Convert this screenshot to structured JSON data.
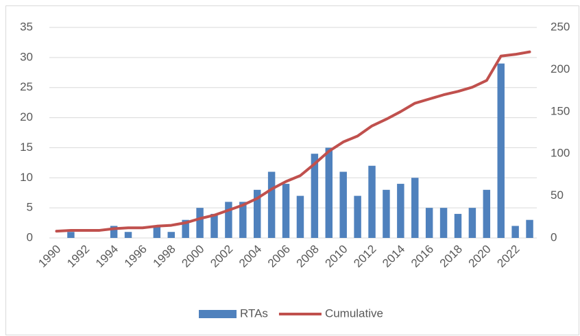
{
  "chart_data": {
    "type": "bar-line",
    "categories": [
      "1990",
      null,
      "1992",
      null,
      "1994",
      null,
      "1996",
      null,
      "1998",
      null,
      "2000",
      null,
      "2002",
      null,
      "2004",
      null,
      "2006",
      null,
      "2008",
      null,
      "2010",
      null,
      "2012",
      null,
      "2014",
      null,
      "2016",
      null,
      "2018",
      null,
      "2020",
      null,
      "2022",
      null
    ],
    "series": [
      {
        "name": "RTAs",
        "type": "bar",
        "color": "#4f81bd",
        "values": [
          0,
          1,
          0,
          0,
          2,
          1,
          0,
          2,
          1,
          3,
          5,
          4,
          6,
          6,
          8,
          11,
          9,
          7,
          14,
          15,
          11,
          7,
          12,
          8,
          9,
          10,
          5,
          5,
          4,
          5,
          8,
          29,
          2,
          3
        ]
      },
      {
        "name": "Cumulative",
        "type": "line",
        "axis": "y2",
        "color": "#c0504d",
        "values": [
          8,
          9,
          9,
          9,
          11,
          12,
          12,
          14,
          15,
          18,
          23,
          27,
          33,
          39,
          47,
          58,
          67,
          74,
          88,
          103,
          114,
          121,
          133,
          141,
          150,
          160,
          165,
          170,
          174,
          179,
          187,
          216,
          218,
          221
        ]
      }
    ],
    "ylim": [
      0,
      35
    ],
    "yticks": [
      0,
      5,
      10,
      15,
      20,
      25,
      30,
      35
    ],
    "y2lim": [
      0,
      250
    ],
    "y2ticks": [
      0,
      50,
      100,
      150,
      200,
      250
    ],
    "grid": true,
    "legend": "bottom"
  }
}
